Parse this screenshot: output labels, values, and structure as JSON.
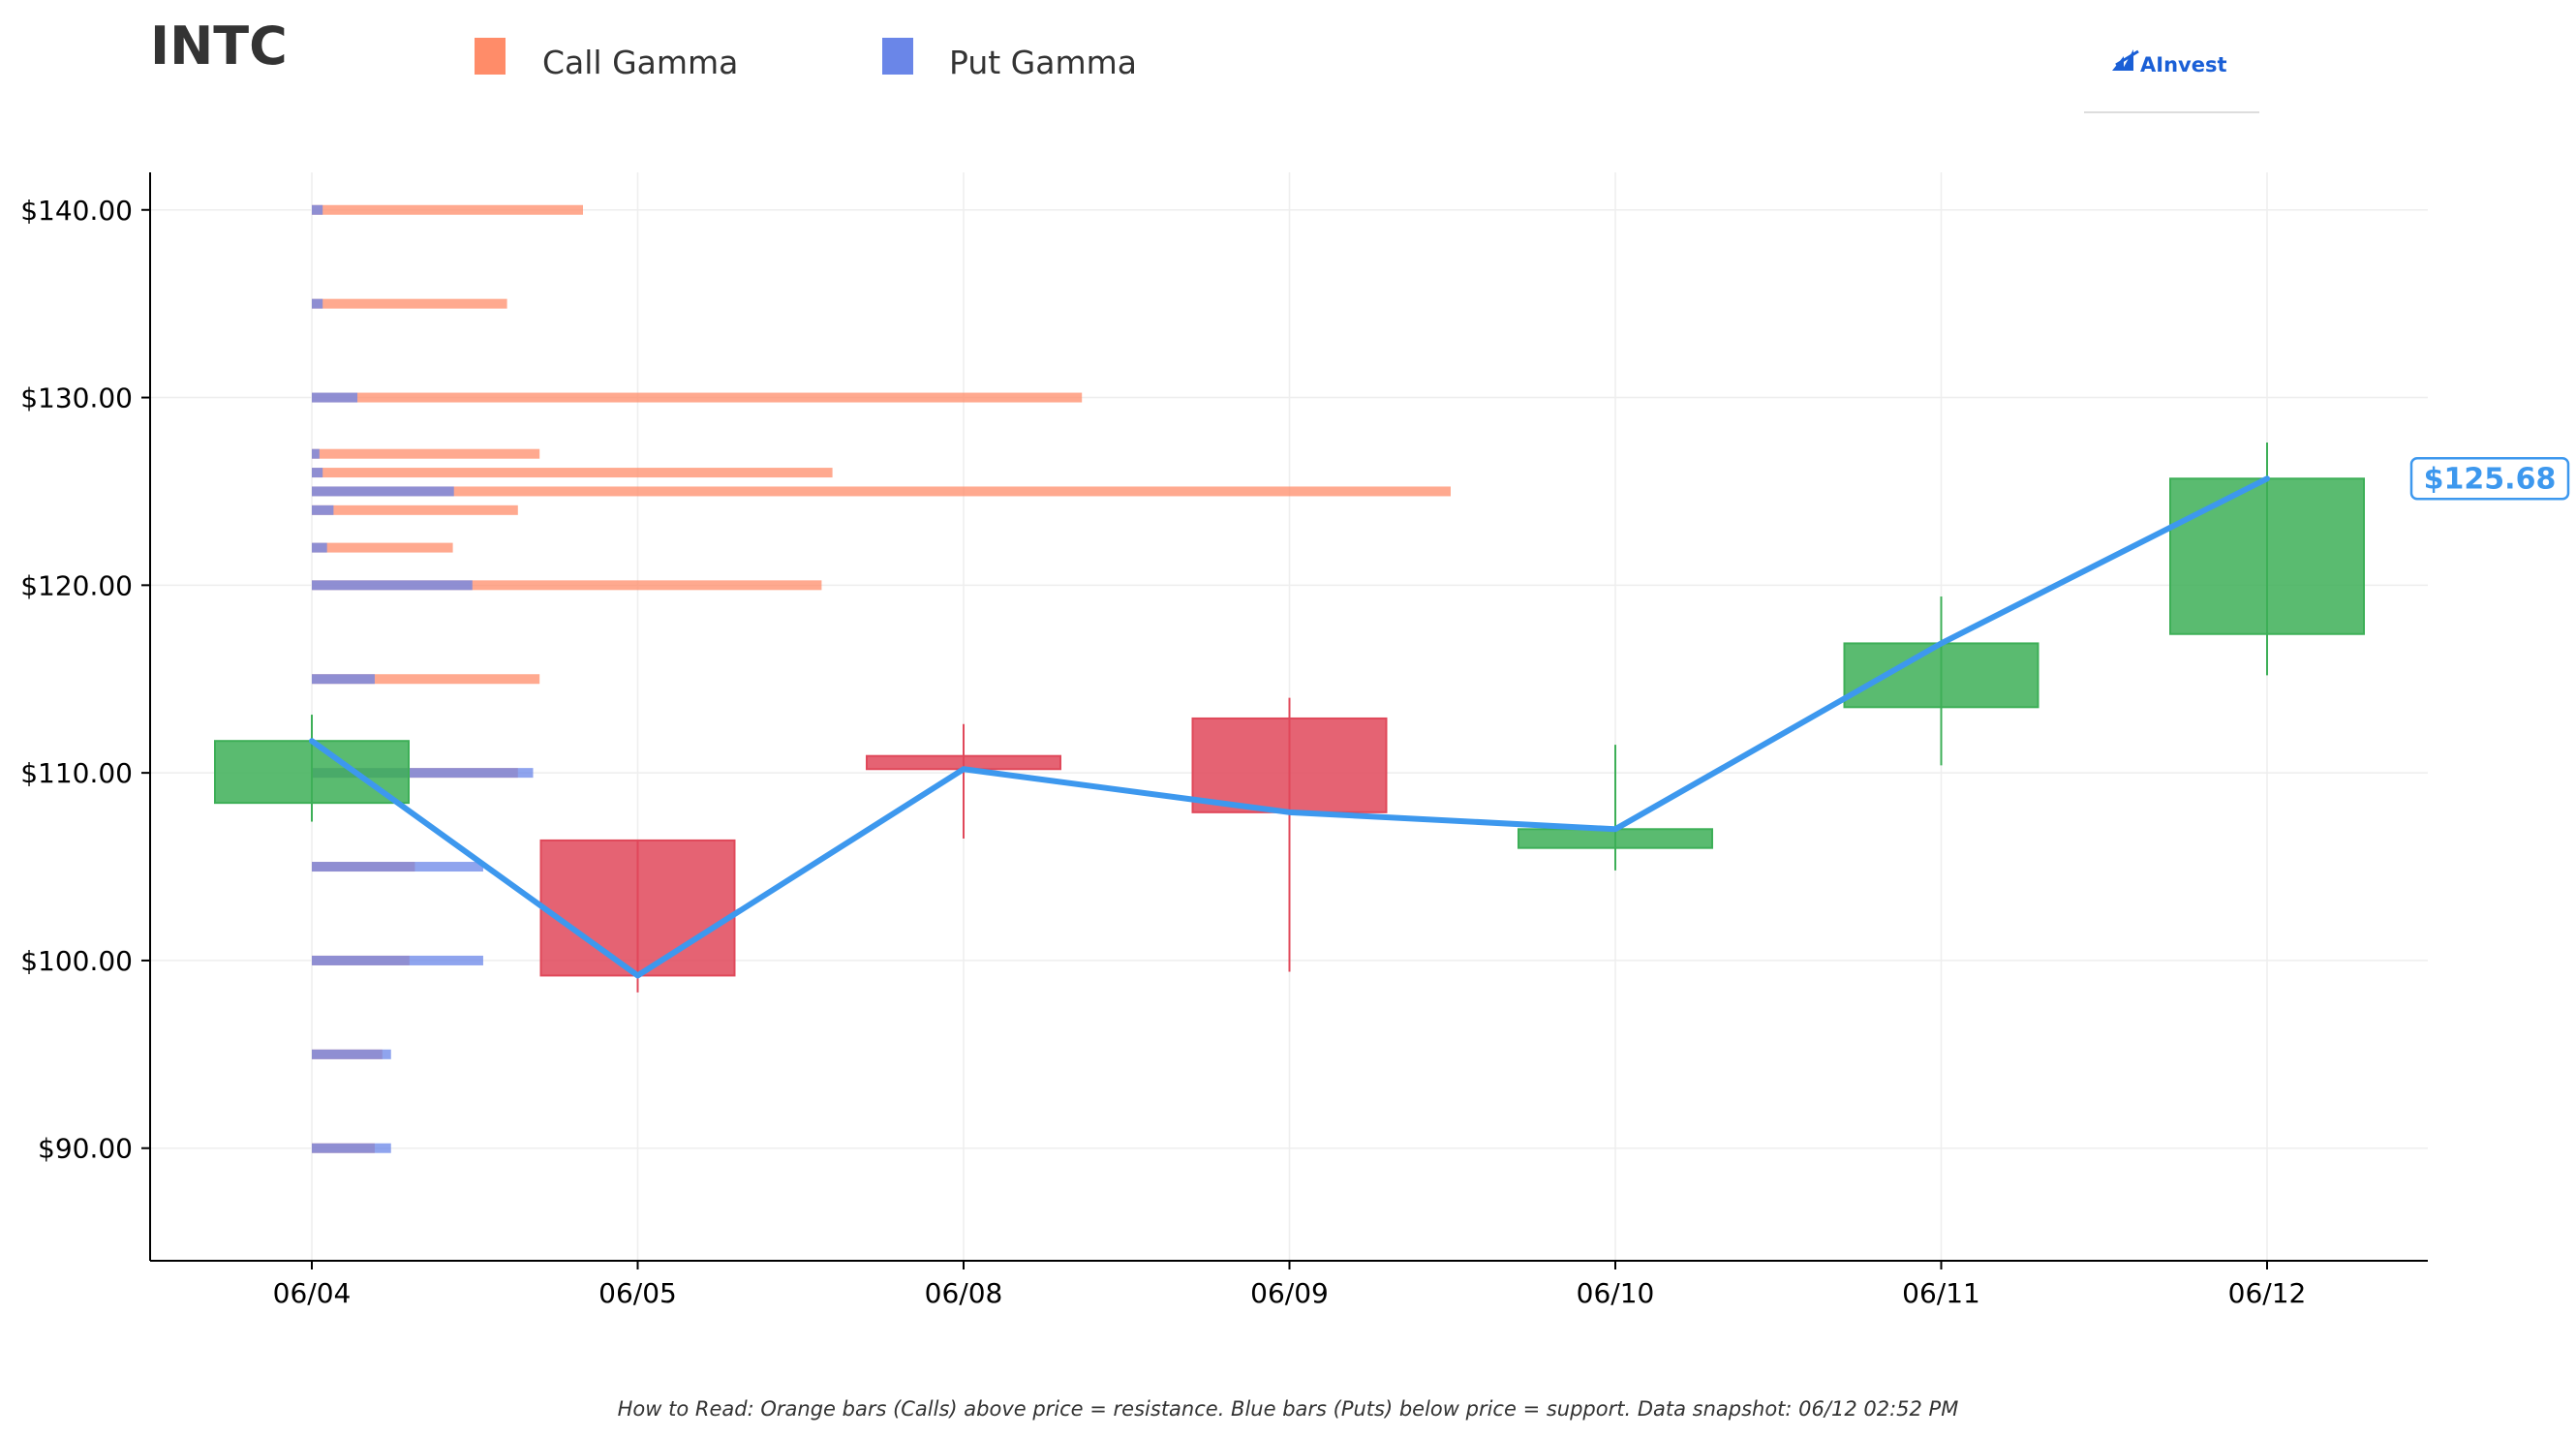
{
  "chart_data": {
    "type": "candlestick",
    "ticker": "INTC",
    "legend": {
      "call": "Call Gamma",
      "put": "Put Gamma"
    },
    "logo_text": "AInvest",
    "footnote": "How to Read: Orange bars (Calls) above price = resistance. Blue bars (Puts) below price = support. Data snapshot: 06/12 02:52 PM",
    "price_label": "$125.68",
    "ylim": [
      84,
      142
    ],
    "y_ticks": [
      {
        "value": 90,
        "label": "$90.00"
      },
      {
        "value": 100,
        "label": "$100.00"
      },
      {
        "value": 110,
        "label": "$110.00"
      },
      {
        "value": 120,
        "label": "$120.00"
      },
      {
        "value": 130,
        "label": "$130.00"
      },
      {
        "value": 140,
        "label": "$140.00"
      }
    ],
    "categories": [
      "06/04",
      "06/05",
      "06/08",
      "06/09",
      "06/10",
      "06/11",
      "06/12"
    ],
    "candles": [
      {
        "date": "06/04",
        "open": 108.4,
        "high": 113.1,
        "low": 107.4,
        "close": 111.7
      },
      {
        "date": "06/05",
        "open": 106.4,
        "high": 106.4,
        "low": 98.3,
        "close": 99.2
      },
      {
        "date": "06/08",
        "open": 110.9,
        "high": 112.6,
        "low": 106.5,
        "close": 110.2
      },
      {
        "date": "06/09",
        "open": 112.9,
        "high": 114.0,
        "low": 99.4,
        "close": 107.9
      },
      {
        "date": "06/10",
        "open": 106.0,
        "high": 111.5,
        "low": 104.8,
        "close": 107.0
      },
      {
        "date": "06/11",
        "open": 113.5,
        "high": 119.4,
        "low": 110.4,
        "close": 116.9
      },
      {
        "date": "06/12",
        "open": 117.4,
        "high": 127.6,
        "low": 115.2,
        "close": 125.68
      }
    ],
    "price_line": [
      111.7,
      99.2,
      110.2,
      107.9,
      107.0,
      116.9,
      125.68
    ],
    "gamma": [
      {
        "strike": 140,
        "call": 2.5,
        "put": 0.1
      },
      {
        "strike": 135,
        "call": 1.8,
        "put": 0.1
      },
      {
        "strike": 130,
        "call": 7.1,
        "put": 0.42
      },
      {
        "strike": 127,
        "call": 2.1,
        "put": 0.07
      },
      {
        "strike": 126,
        "call": 4.8,
        "put": 0.1
      },
      {
        "strike": 125,
        "call": 10.5,
        "put": 1.31
      },
      {
        "strike": 124,
        "call": 1.9,
        "put": 0.2
      },
      {
        "strike": 122,
        "call": 1.3,
        "put": 0.14
      },
      {
        "strike": 120,
        "call": 4.7,
        "put": 1.48
      },
      {
        "strike": 115,
        "call": 2.1,
        "put": 0.58
      },
      {
        "strike": 110,
        "call": 1.9,
        "put": 2.04
      },
      {
        "strike": 105,
        "call": 0.95,
        "put": 1.58
      },
      {
        "strike": 100,
        "call": 0.9,
        "put": 1.58
      },
      {
        "strike": 95,
        "call": 0.65,
        "put": 0.73
      },
      {
        "strike": 90,
        "call": 0.58,
        "put": 0.73
      }
    ],
    "colors": {
      "call": "#ff8c69",
      "put": "#6a86e8",
      "up": "#3daf57",
      "down": "#e0485a",
      "line": "#3d98ee",
      "grid": "#eeeeee",
      "axis": "#000000",
      "logo": "#1a5fd6"
    }
  }
}
